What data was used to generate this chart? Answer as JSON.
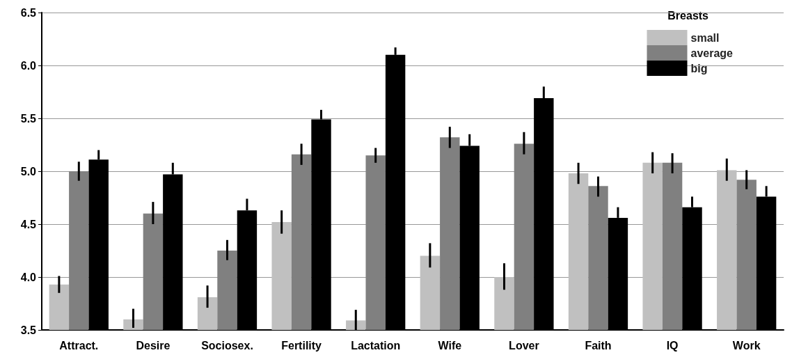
{
  "chart_data": {
    "type": "bar",
    "legend_title": "Breasts",
    "legend": "top right",
    "grid": "y",
    "categories": [
      "Attract.",
      "Desire",
      "Sociosex.",
      "Fertility",
      "Lactation",
      "Wife",
      "Lover",
      "Faith",
      "IQ",
      "Work"
    ],
    "ylim": [
      3.5,
      6.5
    ],
    "yticks": [
      3.5,
      {
        "value": 4,
        "label": "4.0"
      },
      4.5,
      {
        "value": 5,
        "label": "5.0"
      },
      5.5,
      {
        "value": 6,
        "label": "6.0"
      },
      6.5
    ],
    "series": [
      {
        "name": "small",
        "color": "#c0c0c0",
        "values": [
          3.93,
          3.6,
          3.81,
          4.52,
          3.59,
          4.2,
          4.0,
          4.98,
          5.08,
          5.01
        ],
        "errors": [
          [
            3.85,
            4.01
          ],
          [
            3.52,
            3.7
          ],
          [
            3.71,
            3.92
          ],
          [
            4.41,
            4.63
          ],
          [
            3.5,
            3.69
          ],
          [
            4.09,
            4.32
          ],
          [
            3.88,
            4.13
          ],
          [
            4.88,
            5.08
          ],
          [
            4.98,
            5.18
          ],
          [
            4.91,
            5.12
          ]
        ]
      },
      {
        "name": "average",
        "color": "#808080",
        "values": [
          5.0,
          4.6,
          4.25,
          5.16,
          5.15,
          5.32,
          5.26,
          4.86,
          5.08,
          4.92
        ],
        "errors": [
          [
            4.91,
            5.09
          ],
          [
            4.5,
            4.71
          ],
          [
            4.16,
            4.35
          ],
          [
            5.06,
            5.26
          ],
          [
            5.08,
            5.22
          ],
          [
            5.22,
            5.42
          ],
          [
            5.16,
            5.37
          ],
          [
            4.76,
            4.95
          ],
          [
            4.98,
            5.17
          ],
          [
            4.83,
            5.01
          ]
        ]
      },
      {
        "name": "big",
        "color": "#000000",
        "values": [
          5.11,
          4.97,
          4.63,
          5.49,
          6.1,
          5.24,
          5.69,
          4.56,
          4.66,
          4.76
        ],
        "errors": [
          [
            5.11,
            5.2
          ],
          [
            4.97,
            5.08
          ],
          [
            4.63,
            4.74
          ],
          [
            5.49,
            5.58
          ],
          [
            6.1,
            6.17
          ],
          [
            5.24,
            5.35
          ],
          [
            5.69,
            5.8
          ],
          [
            4.56,
            4.66
          ],
          [
            4.66,
            4.76
          ],
          [
            4.76,
            4.86
          ]
        ]
      }
    ]
  }
}
